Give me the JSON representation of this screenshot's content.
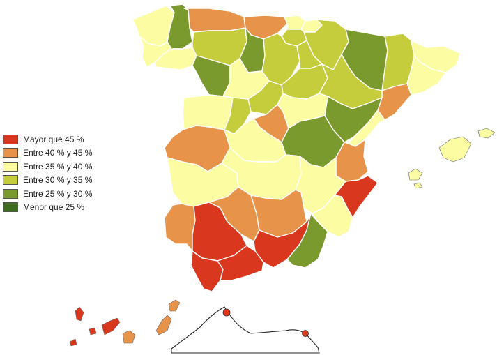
{
  "colors": {
    "c45": "#d9381e",
    "c40": "#e8934a",
    "c35": "#fcfca2",
    "c30": "#c6cd3c",
    "c25": "#7a9a2e",
    "c0": "#3e6b20"
  },
  "legend": {
    "items": [
      {
        "key": "c45",
        "label": "Mayor que 45  %"
      },
      {
        "key": "c40",
        "label": "Entre 40 % y 45  %"
      },
      {
        "key": "c35",
        "label": "Entre 35 % y 40  %"
      },
      {
        "key": "c30",
        "label": "Entre 30 % y 35  %"
      },
      {
        "key": "c25",
        "label": "Entre 25 % y 30  %"
      },
      {
        "key": "c0",
        "label": "Menor que 25  %"
      }
    ]
  },
  "regions": [
    {
      "name": "a-coruna",
      "cat": "c35"
    },
    {
      "name": "lugo",
      "cat": "c25"
    },
    {
      "name": "asturias",
      "cat": "c40"
    },
    {
      "name": "cantabria",
      "cat": "c40"
    },
    {
      "name": "vizcaya",
      "cat": "c35"
    },
    {
      "name": "guipuzcoa",
      "cat": "c35"
    },
    {
      "name": "navarra",
      "cat": "c30"
    },
    {
      "name": "huesca",
      "cat": "c25"
    },
    {
      "name": "lleida",
      "cat": "c30"
    },
    {
      "name": "girona",
      "cat": "c35"
    },
    {
      "name": "barcelona",
      "cat": "c35"
    },
    {
      "name": "tarragona",
      "cat": "c40"
    },
    {
      "name": "pontevedra",
      "cat": "c35"
    },
    {
      "name": "ourense",
      "cat": "c35"
    },
    {
      "name": "leon",
      "cat": "c30"
    },
    {
      "name": "palencia",
      "cat": "c25"
    },
    {
      "name": "burgos",
      "cat": "c30"
    },
    {
      "name": "alava",
      "cat": "c30"
    },
    {
      "name": "la-rioja",
      "cat": "c30"
    },
    {
      "name": "zamora",
      "cat": "c25"
    },
    {
      "name": "valladolid",
      "cat": "c35"
    },
    {
      "name": "soria",
      "cat": "c30"
    },
    {
      "name": "zaragoza",
      "cat": "c30"
    },
    {
      "name": "salamanca",
      "cat": "c35"
    },
    {
      "name": "avila",
      "cat": "c30"
    },
    {
      "name": "segovia",
      "cat": "c30"
    },
    {
      "name": "madrid",
      "cat": "c40"
    },
    {
      "name": "guadalajara",
      "cat": "c35"
    },
    {
      "name": "teruel",
      "cat": "c25"
    },
    {
      "name": "castellon",
      "cat": "c35"
    },
    {
      "name": "caceres",
      "cat": "c40"
    },
    {
      "name": "toledo",
      "cat": "c35"
    },
    {
      "name": "cuenca",
      "cat": "c25"
    },
    {
      "name": "valencia",
      "cat": "c40"
    },
    {
      "name": "badajoz",
      "cat": "c35"
    },
    {
      "name": "ciudad-real",
      "cat": "c35"
    },
    {
      "name": "albacete",
      "cat": "c35"
    },
    {
      "name": "alicante",
      "cat": "c45"
    },
    {
      "name": "huelva",
      "cat": "c40"
    },
    {
      "name": "sevilla",
      "cat": "c45"
    },
    {
      "name": "cordoba",
      "cat": "c40"
    },
    {
      "name": "jaen",
      "cat": "c40"
    },
    {
      "name": "granada",
      "cat": "c45"
    },
    {
      "name": "murcia",
      "cat": "c35"
    },
    {
      "name": "almeria",
      "cat": "c25"
    },
    {
      "name": "cadiz",
      "cat": "c45"
    },
    {
      "name": "malaga",
      "cat": "c45"
    },
    {
      "name": "mallorca",
      "cat": "c35"
    },
    {
      "name": "menorca",
      "cat": "c35"
    },
    {
      "name": "ibiza",
      "cat": "c35"
    },
    {
      "name": "formentera",
      "cat": "c35"
    },
    {
      "name": "lanzarote",
      "cat": "c40"
    },
    {
      "name": "fuerteventura",
      "cat": "c40"
    },
    {
      "name": "gran-canaria",
      "cat": "c40"
    },
    {
      "name": "tenerife",
      "cat": "c45"
    },
    {
      "name": "la-gomera",
      "cat": "c45"
    },
    {
      "name": "la-palma",
      "cat": "c45"
    },
    {
      "name": "el-hierro",
      "cat": "c45"
    },
    {
      "name": "ceuta",
      "cat": "c45"
    },
    {
      "name": "melilla",
      "cat": "c45"
    }
  ]
}
